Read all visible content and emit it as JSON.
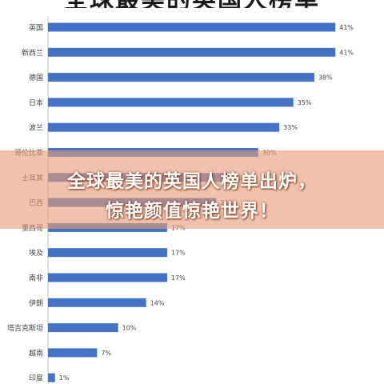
{
  "header": {
    "title_partial": "全球最美的英国人榜单"
  },
  "overlay": {
    "line1": "全球最美的英国人榜单出炉，",
    "line2": "惊艳颜值惊艳世界！"
  },
  "chart_data": {
    "type": "bar",
    "orientation": "horizontal",
    "categories": [
      "英国",
      "新西兰",
      "德国",
      "日本",
      "波兰",
      "哥伦比亚",
      "土耳其",
      "巴西",
      "墨西哥",
      "埃及",
      "南非",
      "伊朗",
      "塔吉克斯坦",
      "越南",
      "印度"
    ],
    "values": [
      41,
      41,
      38,
      35,
      33,
      30,
      26,
      24,
      17,
      17,
      17,
      14,
      10,
      7,
      1
    ],
    "value_labels": [
      "41%",
      "41%",
      "38%",
      "35%",
      "33%",
      "30%",
      "26%",
      "24%",
      "17%",
      "17%",
      "17%",
      "14%",
      "10%",
      "7%",
      "1%"
    ],
    "xlim": [
      0,
      42
    ],
    "bar_color": "#4472c4",
    "grid": false
  }
}
